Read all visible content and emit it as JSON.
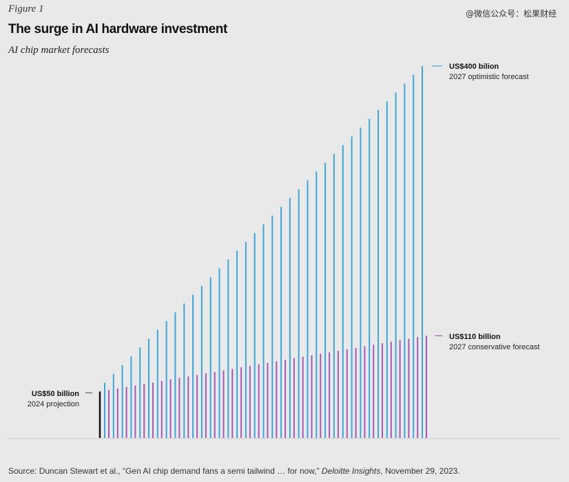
{
  "figure_label": "Figure 1",
  "watermark": "@微信公众号：松果财经",
  "title": "The surge in AI hardware investment",
  "subtitle": "AI chip market forecasts",
  "source": {
    "prefix": "Source: Duncan Stewart et al., “Gen AI chip demand fans a semi tailwind … for now,” ",
    "publication": "Deloitte Insights",
    "suffix": ", November 29, 2023."
  },
  "chart_data": {
    "type": "bar",
    "unit": "US$ billion",
    "colors": {
      "base": "#111111",
      "optimistic": "#3aa6d9",
      "conservative": "#a657b4",
      "baseline_axis": "#cfcfcf"
    },
    "base": {
      "value": 50,
      "label_value": "US$50 billion",
      "label_desc": "2024 projection"
    },
    "optimistic": {
      "start": 50,
      "end": 400,
      "bars": 37,
      "label_value": "US$400 bilion",
      "label_desc": "2027 optimistic forecast"
    },
    "conservative": {
      "start": 50,
      "end": 110,
      "bars": 37,
      "label_value": "US$110 billion",
      "label_desc": "2027 conservative forecast"
    }
  }
}
